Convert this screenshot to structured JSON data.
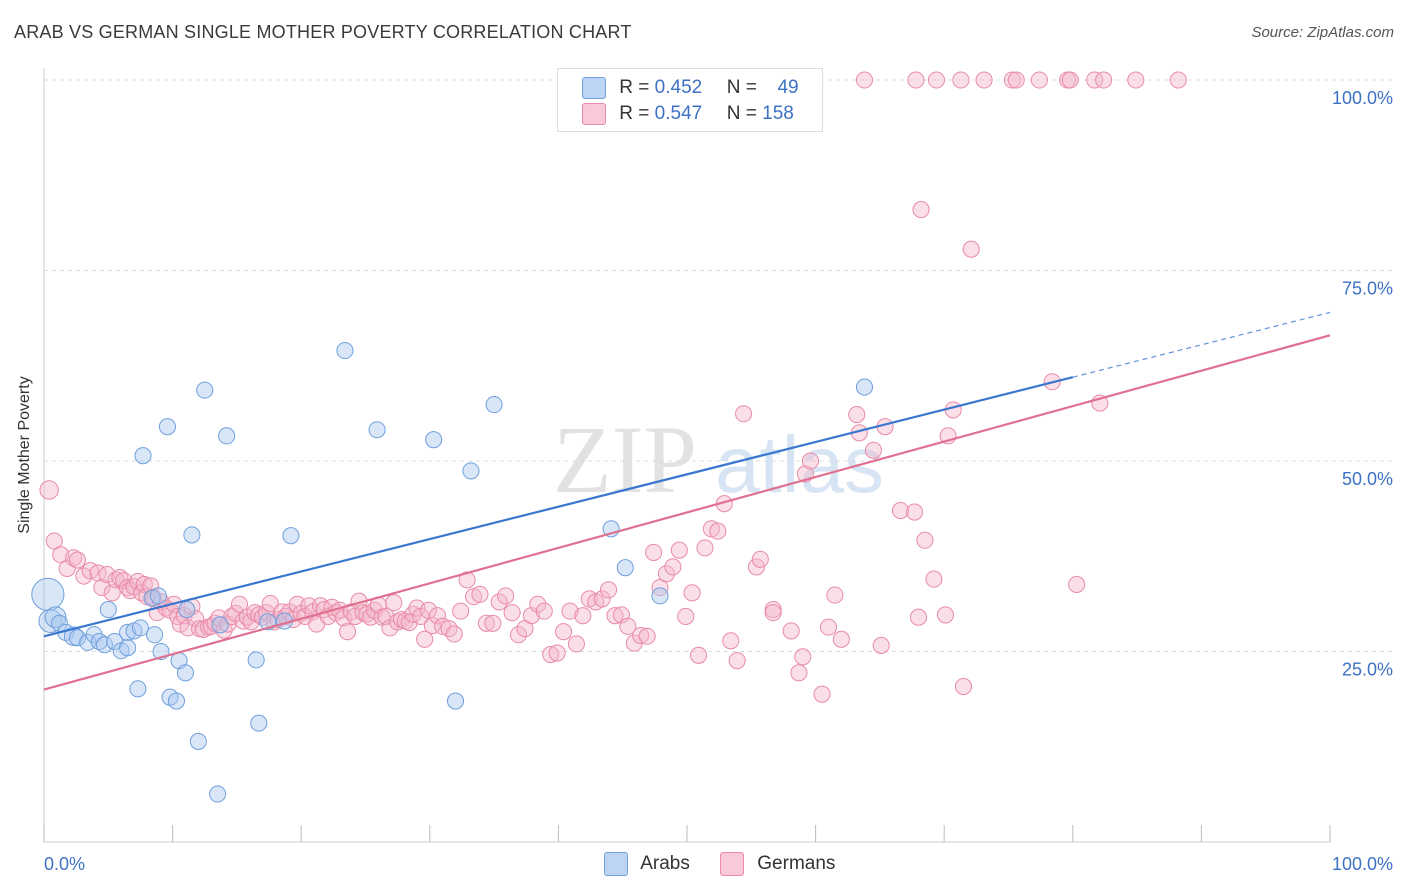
{
  "title": "ARAB VS GERMAN SINGLE MOTHER POVERTY CORRELATION CHART",
  "source": "Source: ZipAtlas.com",
  "watermark": {
    "zip": "ZIP",
    "atlas": "atlas"
  },
  "colors": {
    "arabs_fill": "#a8c8f0",
    "arabs_stroke": "#6f9fdd",
    "arabs_line": "#3a78d0",
    "germans_fill": "#f5b8cb",
    "germans_stroke": "#e88aa8",
    "germans_line": "#e0708f",
    "grid": "#dddddd",
    "axis_text": "#3d72c4"
  },
  "legend": {
    "arabs": {
      "r_label": "R =",
      "r_value": "0.452",
      "n_label": "N =",
      "n_value": "49"
    },
    "germans": {
      "r_label": "R =",
      "r_value": "0.547",
      "n_label": "N =",
      "n_value": "158"
    }
  },
  "bottom_legend": {
    "arabs": "Arabs",
    "germans": "Germans"
  },
  "chart_data": {
    "type": "scatter",
    "title": "ARAB VS GERMAN SINGLE MOTHER POVERTY CORRELATION CHART",
    "xlabel": "",
    "ylabel": "Single Mother Poverty",
    "xlim": [
      0,
      100
    ],
    "ylim": [
      0,
      100
    ],
    "x_tick_labels": [
      "0.0%",
      "100.0%"
    ],
    "y_tick_labels": [
      "25.0%",
      "50.0%",
      "75.0%",
      "100.0%"
    ],
    "y_ticks": [
      25,
      50,
      75,
      100
    ],
    "grid": true,
    "legend_position": "top-center",
    "series": [
      {
        "name": "Arabs",
        "trend": {
          "x0": 0,
          "y0": 27.0,
          "x1": 80,
          "y1": 61.0,
          "dashed_to_x": 100,
          "dashed_to_y": 69.5
        },
        "points": [
          [
            0.3,
            32.5,
            14
          ],
          [
            0.5,
            29,
            10
          ],
          [
            0.9,
            29.5,
            9
          ],
          [
            1.2,
            28.7,
            7
          ],
          [
            1.7,
            27.5,
            7
          ],
          [
            2.3,
            27,
            8
          ],
          [
            2.6,
            26.8,
            7
          ],
          [
            3.4,
            26.2,
            7
          ],
          [
            3.9,
            27.2,
            7
          ],
          [
            4.3,
            26.3,
            7
          ],
          [
            4.7,
            25.9,
            7
          ],
          [
            5.0,
            30.5,
            7
          ],
          [
            5.5,
            26.3,
            7
          ],
          [
            6.0,
            25.1,
            7
          ],
          [
            6.5,
            27.5,
            7
          ],
          [
            7.0,
            27.7,
            7
          ],
          [
            7.5,
            28.1,
            7
          ],
          [
            6.5,
            25.5,
            7
          ],
          [
            7.3,
            20.1,
            7
          ],
          [
            7.7,
            50.7,
            7
          ],
          [
            8.4,
            32.0,
            7
          ],
          [
            8.6,
            27.2,
            7
          ],
          [
            8.9,
            32.3,
            7
          ],
          [
            9.1,
            25.0,
            7
          ],
          [
            9.6,
            54.5,
            7
          ],
          [
            9.8,
            19.0,
            7
          ],
          [
            10.3,
            18.5,
            7
          ],
          [
            10.5,
            23.8,
            7
          ],
          [
            11.1,
            30.5,
            7
          ],
          [
            11.5,
            40.3,
            7
          ],
          [
            12.0,
            13.2,
            7
          ],
          [
            12.5,
            59.3,
            7
          ],
          [
            11.0,
            22.2,
            7
          ],
          [
            13.5,
            6.3,
            7
          ],
          [
            13.7,
            28.5,
            7
          ],
          [
            14.2,
            53.3,
            7
          ],
          [
            16.5,
            23.9,
            7
          ],
          [
            16.7,
            15.6,
            7
          ],
          [
            17.4,
            28.9,
            7
          ],
          [
            18.7,
            29.0,
            7
          ],
          [
            19.2,
            40.2,
            7
          ],
          [
            23.4,
            64.5,
            7
          ],
          [
            25.9,
            54.1,
            7
          ],
          [
            30.3,
            52.8,
            7
          ],
          [
            33.2,
            48.7,
            7
          ],
          [
            35.0,
            57.4,
            7
          ],
          [
            32.0,
            18.5,
            7
          ],
          [
            44.1,
            41.1,
            7
          ],
          [
            45.2,
            36.0,
            7
          ],
          [
            47.9,
            32.3,
            7
          ],
          [
            63.8,
            59.7,
            7
          ]
        ]
      },
      {
        "name": "Germans",
        "trend": {
          "x0": 0,
          "y0": 20.0,
          "x1": 100,
          "y1": 66.5
        },
        "points": [
          [
            0.4,
            46.2,
            8
          ],
          [
            0.8,
            39.5,
            7
          ],
          [
            1.3,
            37.7,
            7
          ],
          [
            1.8,
            35.9,
            7
          ],
          [
            2.3,
            37.3,
            7
          ],
          [
            2.6,
            37.0,
            7
          ],
          [
            3.1,
            34.9,
            7
          ],
          [
            3.6,
            35.6,
            7
          ],
          [
            4.2,
            35.3,
            7
          ],
          [
            4.5,
            33.4,
            7
          ],
          [
            4.9,
            35.1,
            7
          ],
          [
            5.3,
            32.7,
            7
          ],
          [
            5.6,
            34.4,
            7
          ],
          [
            5.9,
            34.7,
            7
          ],
          [
            6.2,
            34.3,
            7
          ],
          [
            6.5,
            33.4,
            7
          ],
          [
            6.7,
            33.0,
            7
          ],
          [
            7.0,
            33.5,
            7
          ],
          [
            7.3,
            34.2,
            7
          ],
          [
            7.6,
            32.7,
            7
          ],
          [
            7.8,
            33.8,
            7
          ],
          [
            8.0,
            32.2,
            7
          ],
          [
            8.3,
            33.6,
            7
          ],
          [
            8.5,
            32.1,
            7
          ],
          [
            8.8,
            30.1,
            7
          ],
          [
            9.1,
            31.5,
            7
          ],
          [
            9.5,
            30.7,
            7
          ],
          [
            9.8,
            30.4,
            7
          ],
          [
            10.1,
            31.2,
            7
          ],
          [
            10.4,
            29.6,
            7
          ],
          [
            10.6,
            28.6,
            7
          ],
          [
            10.9,
            29.7,
            7
          ],
          [
            11.2,
            28.1,
            7
          ],
          [
            11.5,
            30.9,
            7
          ],
          [
            11.8,
            29.3,
            7
          ],
          [
            12.1,
            28.0,
            7
          ],
          [
            12.4,
            27.9,
            7
          ],
          [
            12.8,
            28.2,
            7
          ],
          [
            13.0,
            28.3,
            7
          ],
          [
            13.3,
            28.7,
            7
          ],
          [
            13.6,
            29.4,
            7
          ],
          [
            14.0,
            27.8,
            7
          ],
          [
            14.3,
            28.6,
            7
          ],
          [
            14.6,
            29.6,
            7
          ],
          [
            14.9,
            30.0,
            7
          ],
          [
            15.2,
            31.2,
            7
          ],
          [
            15.5,
            29.0,
            7
          ],
          [
            15.8,
            29.5,
            7
          ],
          [
            16.1,
            28.9,
            7
          ],
          [
            16.4,
            30.1,
            7
          ],
          [
            16.7,
            29.8,
            7
          ],
          [
            17.0,
            29.5,
            7
          ],
          [
            17.3,
            30.1,
            7
          ],
          [
            17.6,
            31.3,
            7
          ],
          [
            17.9,
            28.9,
            7
          ],
          [
            18.2,
            29.2,
            7
          ],
          [
            18.5,
            30.2,
            7
          ],
          [
            18.8,
            29.6,
            7
          ],
          [
            19.1,
            30.2,
            7
          ],
          [
            19.4,
            29.2,
            7
          ],
          [
            19.7,
            31.2,
            7
          ],
          [
            20.0,
            30.0,
            7
          ],
          [
            20.3,
            29.6,
            7
          ],
          [
            20.6,
            31.0,
            7
          ],
          [
            20.9,
            30.2,
            7
          ],
          [
            21.2,
            28.6,
            7
          ],
          [
            21.5,
            31.0,
            7
          ],
          [
            21.8,
            30.5,
            7
          ],
          [
            22.1,
            29.6,
            7
          ],
          [
            22.4,
            30.8,
            7
          ],
          [
            22.7,
            30.1,
            7
          ],
          [
            23.0,
            30.4,
            7
          ],
          [
            23.3,
            29.4,
            7
          ],
          [
            23.6,
            27.6,
            7
          ],
          [
            23.9,
            30.2,
            7
          ],
          [
            24.2,
            29.6,
            7
          ],
          [
            24.5,
            31.6,
            7
          ],
          [
            24.8,
            30.1,
            7
          ],
          [
            25.1,
            29.9,
            7
          ],
          [
            25.4,
            29.5,
            7
          ],
          [
            25.7,
            30.4,
            7
          ],
          [
            26.0,
            31.1,
            7
          ],
          [
            26.3,
            29.5,
            7
          ],
          [
            26.6,
            29.6,
            7
          ],
          [
            26.9,
            28.1,
            7
          ],
          [
            27.2,
            31.4,
            7
          ],
          [
            27.5,
            28.9,
            7
          ],
          [
            27.8,
            29.2,
            7
          ],
          [
            28.1,
            29.0,
            7
          ],
          [
            28.4,
            28.8,
            7
          ],
          [
            28.7,
            29.9,
            7
          ],
          [
            29.0,
            30.7,
            7
          ],
          [
            29.3,
            29.6,
            7
          ],
          [
            29.6,
            26.6,
            7
          ],
          [
            29.9,
            30.4,
            7
          ],
          [
            30.2,
            28.4,
            7
          ],
          [
            30.6,
            29.7,
            7
          ],
          [
            31.0,
            28.3,
            7
          ],
          [
            31.5,
            28.0,
            7
          ],
          [
            31.9,
            27.3,
            7
          ],
          [
            32.4,
            30.3,
            7
          ],
          [
            32.9,
            34.4,
            7
          ],
          [
            33.4,
            32.2,
            7
          ],
          [
            33.9,
            32.5,
            7
          ],
          [
            34.4,
            28.7,
            7
          ],
          [
            34.9,
            28.7,
            7
          ],
          [
            35.4,
            31.5,
            7
          ],
          [
            35.9,
            32.3,
            7
          ],
          [
            36.4,
            30.1,
            7
          ],
          [
            36.9,
            27.2,
            7
          ],
          [
            37.4,
            28.0,
            7
          ],
          [
            37.9,
            29.7,
            7
          ],
          [
            38.4,
            31.2,
            7
          ],
          [
            38.9,
            30.3,
            7
          ],
          [
            39.4,
            24.6,
            7
          ],
          [
            39.9,
            24.8,
            7
          ],
          [
            40.4,
            27.6,
            7
          ],
          [
            40.9,
            30.3,
            7
          ],
          [
            41.4,
            26.0,
            7
          ],
          [
            41.9,
            29.7,
            7
          ],
          [
            42.4,
            31.9,
            7
          ],
          [
            42.9,
            31.5,
            7
          ],
          [
            43.4,
            31.9,
            7
          ],
          [
            43.9,
            33.1,
            7
          ],
          [
            44.4,
            29.7,
            7
          ],
          [
            44.9,
            29.8,
            7
          ],
          [
            45.4,
            28.3,
            7
          ],
          [
            45.9,
            26.1,
            7
          ],
          [
            46.4,
            27.1,
            7
          ],
          [
            46.9,
            27.0,
            7
          ],
          [
            47.4,
            38.0,
            7
          ],
          [
            47.9,
            33.4,
            7
          ],
          [
            48.4,
            35.2,
            7
          ],
          [
            48.9,
            36.1,
            7
          ],
          [
            49.4,
            38.3,
            7
          ],
          [
            49.9,
            29.6,
            7
          ],
          [
            50.4,
            32.7,
            7
          ],
          [
            50.9,
            24.5,
            7
          ],
          [
            51.4,
            38.6,
            7
          ],
          [
            51.9,
            41.1,
            7
          ],
          [
            52.4,
            40.8,
            7
          ],
          [
            52.9,
            44.4,
            7
          ],
          [
            53.4,
            26.4,
            7
          ],
          [
            53.9,
            23.8,
            7
          ],
          [
            54.4,
            56.2,
            7
          ],
          [
            55.4,
            36.1,
            7
          ],
          [
            55.7,
            37.1,
            7
          ],
          [
            56.7,
            30.5,
            7
          ],
          [
            56.7,
            30.1,
            7
          ],
          [
            58.1,
            27.7,
            7
          ],
          [
            58.7,
            22.2,
            7
          ],
          [
            59.0,
            24.3,
            7
          ],
          [
            59.2,
            48.3,
            7
          ],
          [
            59.6,
            50.0,
            7
          ],
          [
            60.5,
            19.4,
            7
          ],
          [
            61.0,
            28.2,
            7
          ],
          [
            61.5,
            32.4,
            7
          ],
          [
            62.0,
            26.6,
            7
          ],
          [
            63.2,
            56.1,
            7
          ],
          [
            63.4,
            53.7,
            7
          ],
          [
            64.5,
            51.4,
            7
          ],
          [
            65.1,
            25.8,
            7
          ],
          [
            65.4,
            54.5,
            7
          ],
          [
            66.6,
            43.5,
            7
          ],
          [
            67.7,
            43.3,
            7
          ],
          [
            68.2,
            83.0,
            7
          ],
          [
            68.5,
            39.6,
            7
          ],
          [
            69.2,
            34.5,
            7
          ],
          [
            70.3,
            53.3,
            7
          ],
          [
            70.7,
            56.7,
            7
          ],
          [
            72.1,
            77.8,
            7
          ],
          [
            71.5,
            20.4,
            7
          ],
          [
            68.0,
            29.5,
            7
          ],
          [
            70.1,
            29.8,
            7
          ],
          [
            78.4,
            60.4,
            7
          ],
          [
            80.3,
            33.8,
            7
          ],
          [
            82.1,
            57.6,
            7
          ],
          [
            63.8,
            100,
            7
          ],
          [
            67.8,
            100,
            7
          ],
          [
            69.4,
            100,
            7
          ],
          [
            71.3,
            100,
            7
          ],
          [
            73.1,
            100,
            7
          ],
          [
            75.3,
            100,
            7
          ],
          [
            75.6,
            100,
            7
          ],
          [
            77.4,
            100,
            7
          ],
          [
            79.6,
            100,
            7
          ],
          [
            79.8,
            100,
            7
          ],
          [
            81.7,
            100,
            7
          ],
          [
            82.4,
            100,
            7
          ],
          [
            84.9,
            100,
            7
          ],
          [
            88.2,
            100,
            7
          ]
        ]
      }
    ]
  }
}
